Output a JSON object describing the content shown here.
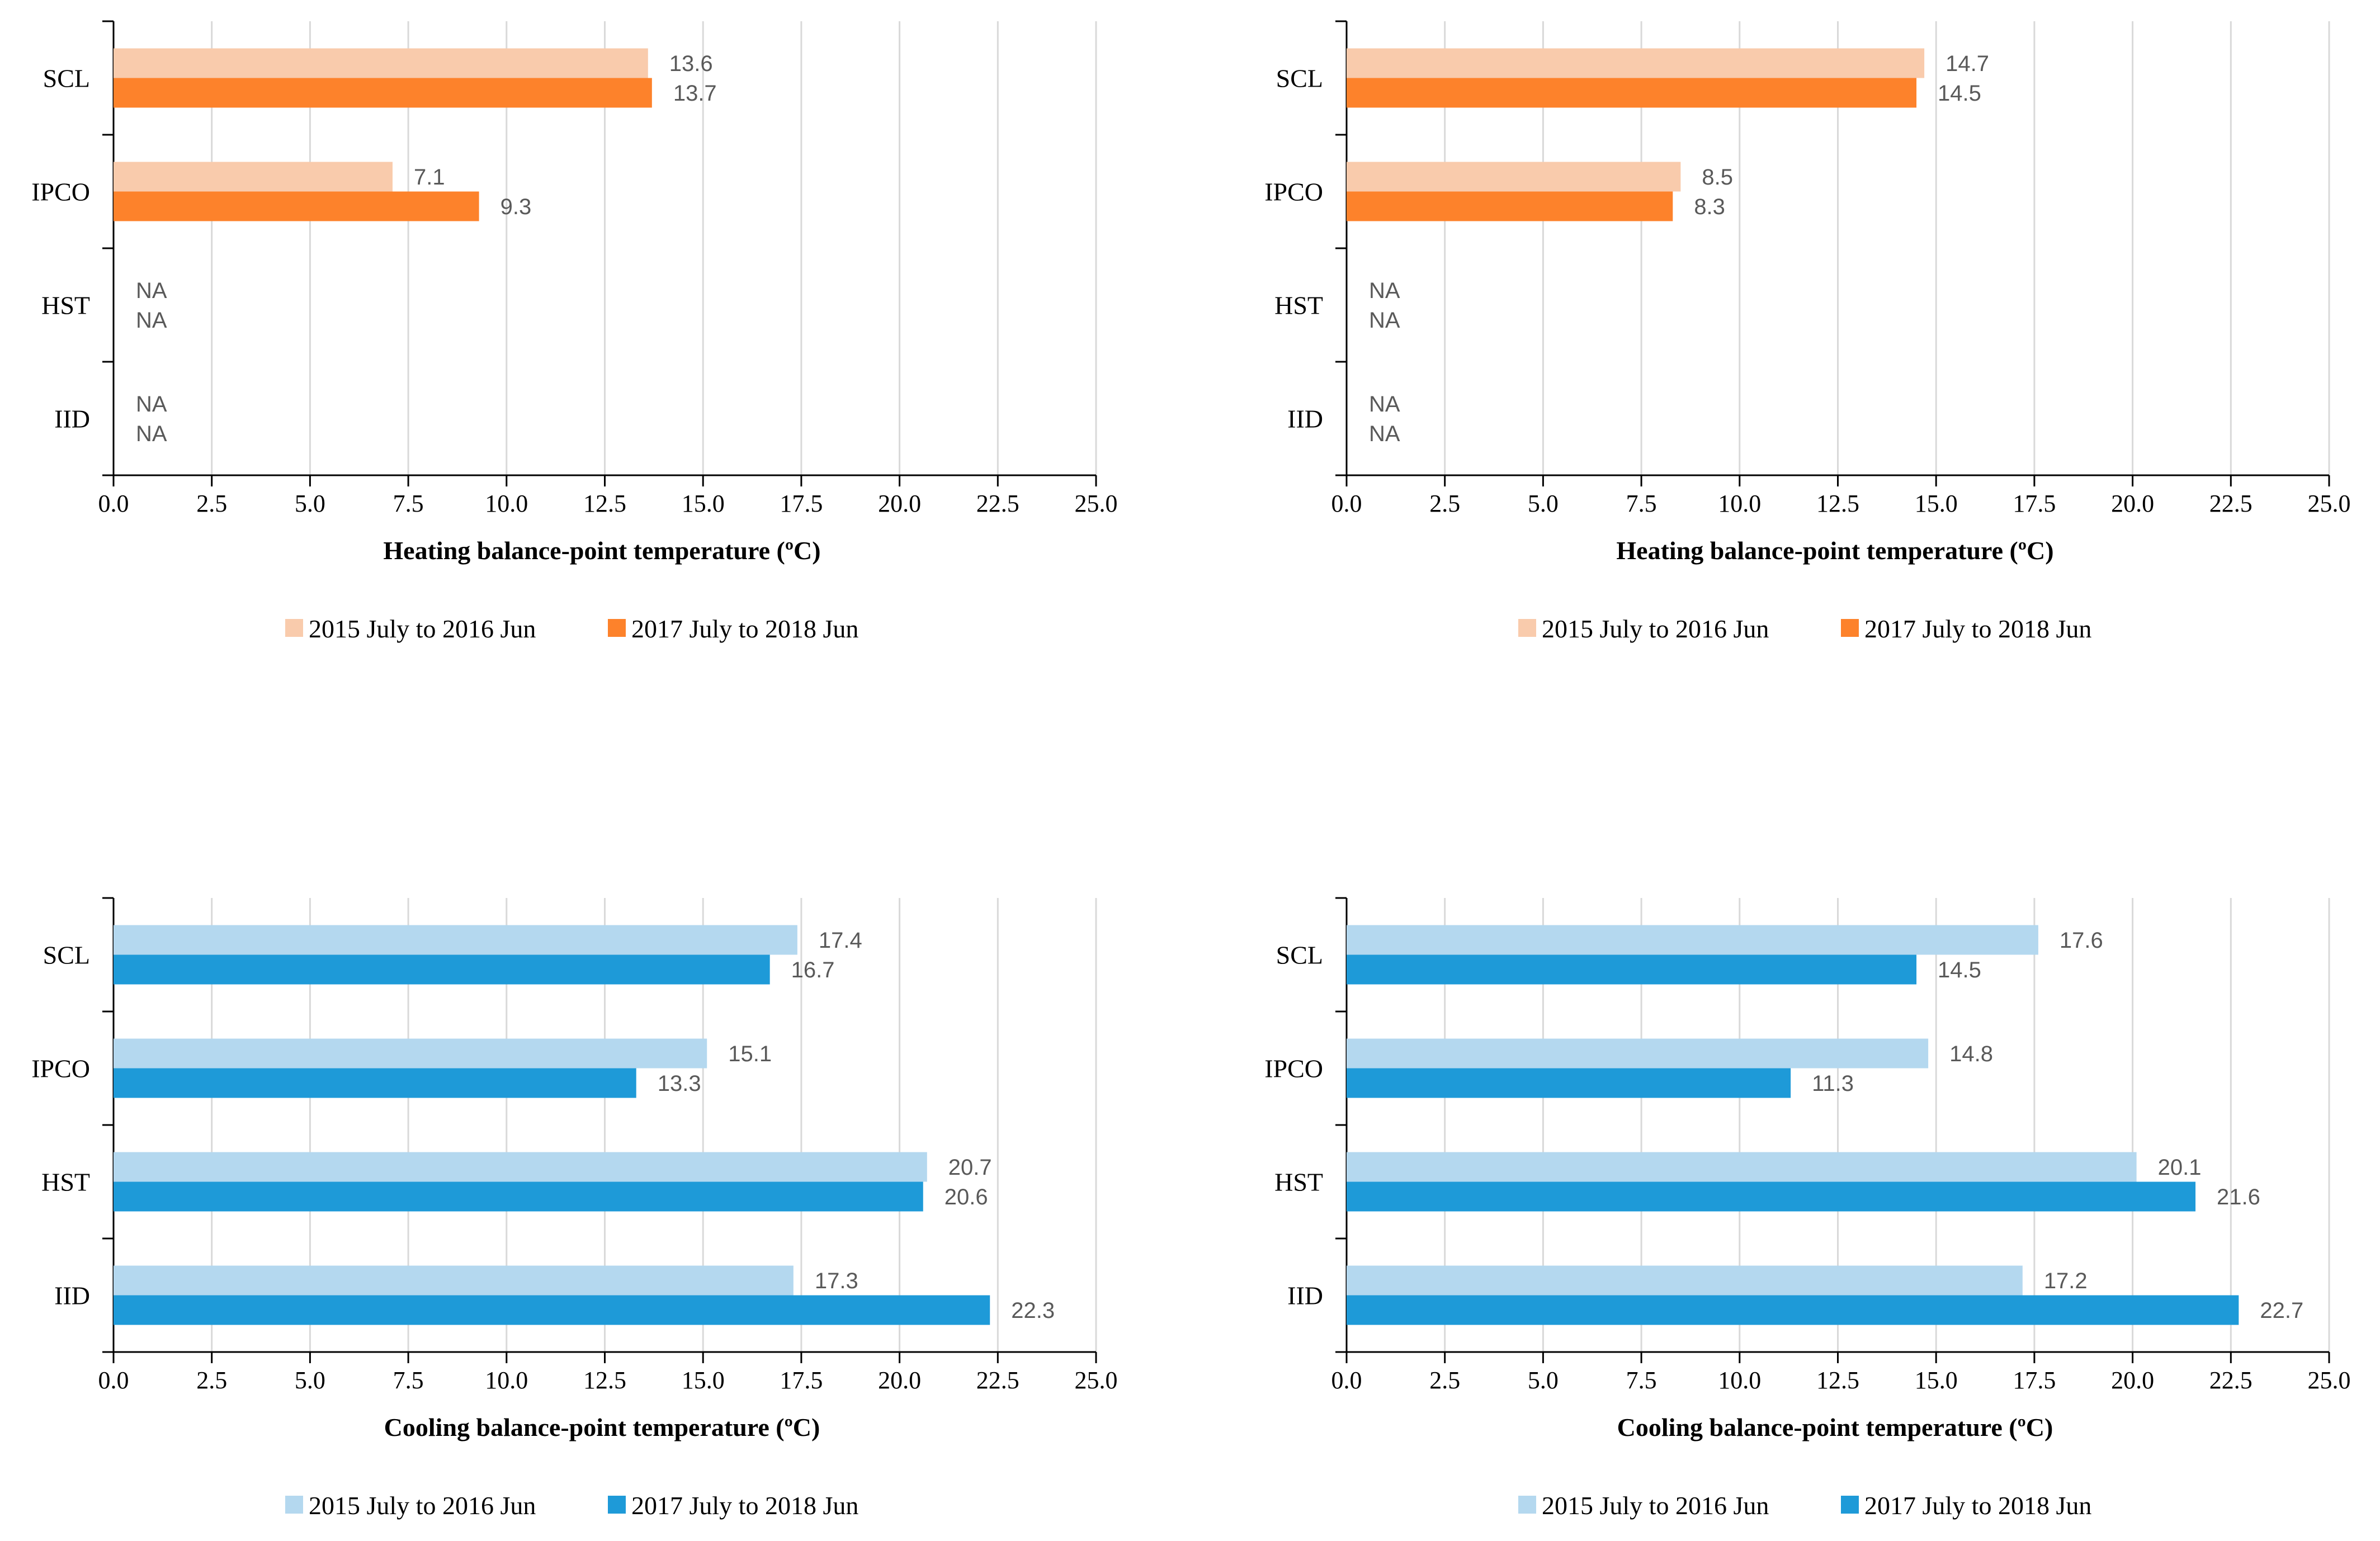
{
  "chart_data": [
    {
      "type": "bar",
      "orientation": "horizontal",
      "title": "",
      "categories": [
        "SCL",
        "IPCO",
        "HST",
        "IID"
      ],
      "series": [
        {
          "name": "2015 July to 2016 Jun",
          "values": [
            13.6,
            7.1,
            null,
            null
          ],
          "labels": [
            "13.6",
            "7.1",
            "NA",
            "NA"
          ],
          "color": "#f9cbac"
        },
        {
          "name": "2017 July to 2018 Jun",
          "values": [
            13.7,
            9.3,
            null,
            null
          ],
          "labels": [
            "13.7",
            "9.3",
            "NA",
            "NA"
          ],
          "color": "#fd822b"
        }
      ],
      "xlabel": "Heating balance-point temperature (ºC)",
      "ylabel": "",
      "xlim": [
        0,
        25
      ],
      "ticks": [
        "0.0",
        "2.5",
        "5.0",
        "7.5",
        "10.0",
        "12.5",
        "15.0",
        "17.5",
        "20.0",
        "22.5",
        "25.0"
      ],
      "grid": true,
      "legend_position": "bottom"
    },
    {
      "type": "bar",
      "orientation": "horizontal",
      "title": "",
      "categories": [
        "SCL",
        "IPCO",
        "HST",
        "IID"
      ],
      "series": [
        {
          "name": "2015 July to 2016 Jun",
          "values": [
            14.7,
            8.5,
            null,
            null
          ],
          "labels": [
            "14.7",
            "8.5",
            "NA",
            "NA"
          ],
          "color": "#f9cbac"
        },
        {
          "name": "2017 July to 2018 Jun",
          "values": [
            14.5,
            8.3,
            null,
            null
          ],
          "labels": [
            "14.5",
            "8.3",
            "NA",
            "NA"
          ],
          "color": "#fd822b"
        }
      ],
      "xlabel": "Heating balance-point temperature (ºC)",
      "ylabel": "",
      "xlim": [
        0,
        25
      ],
      "ticks": [
        "0.0",
        "2.5",
        "5.0",
        "7.5",
        "10.0",
        "12.5",
        "15.0",
        "17.5",
        "20.0",
        "22.5",
        "25.0"
      ],
      "grid": true,
      "legend_position": "bottom"
    },
    {
      "type": "bar",
      "orientation": "horizontal",
      "title": "",
      "categories": [
        "SCL",
        "IPCO",
        "HST",
        "IID"
      ],
      "series": [
        {
          "name": "2015 July to 2016 Jun",
          "values": [
            17.4,
            15.1,
            20.7,
            17.3
          ],
          "labels": [
            "17.4",
            "15.1",
            "20.7",
            "17.3"
          ],
          "color": "#b4d8ef"
        },
        {
          "name": "2017 July to 2018 Jun",
          "values": [
            16.7,
            13.3,
            20.6,
            22.3
          ],
          "labels": [
            "16.7",
            "13.3",
            "20.6",
            "22.3"
          ],
          "color": "#1e9ad8"
        }
      ],
      "xlabel": "Cooling balance-point temperature (ºC)",
      "ylabel": "",
      "xlim": [
        0,
        25
      ],
      "ticks": [
        "0.0",
        "2.5",
        "5.0",
        "7.5",
        "10.0",
        "12.5",
        "15.0",
        "17.5",
        "20.0",
        "22.5",
        "25.0"
      ],
      "grid": true,
      "legend_position": "bottom"
    },
    {
      "type": "bar",
      "orientation": "horizontal",
      "title": "",
      "categories": [
        "SCL",
        "IPCO",
        "HST",
        "IID"
      ],
      "series": [
        {
          "name": "2015 July to 2016 Jun",
          "values": [
            17.6,
            14.8,
            20.1,
            17.2
          ],
          "labels": [
            "17.6",
            "14.8",
            "20.1",
            "17.2"
          ],
          "color": "#b4d8ef"
        },
        {
          "name": "2017 July to 2018 Jun",
          "values": [
            14.5,
            11.3,
            21.6,
            22.7
          ],
          "labels": [
            "14.5",
            "11.3",
            "21.6",
            "22.7"
          ],
          "color": "#1e9ad8"
        }
      ],
      "xlabel": "Cooling balance-point temperature (ºC)",
      "ylabel": "",
      "xlim": [
        0,
        25
      ],
      "ticks": [
        "0.0",
        "2.5",
        "5.0",
        "7.5",
        "10.0",
        "12.5",
        "15.0",
        "17.5",
        "20.0",
        "22.5",
        "25.0"
      ],
      "grid": true,
      "legend_position": "bottom"
    }
  ]
}
